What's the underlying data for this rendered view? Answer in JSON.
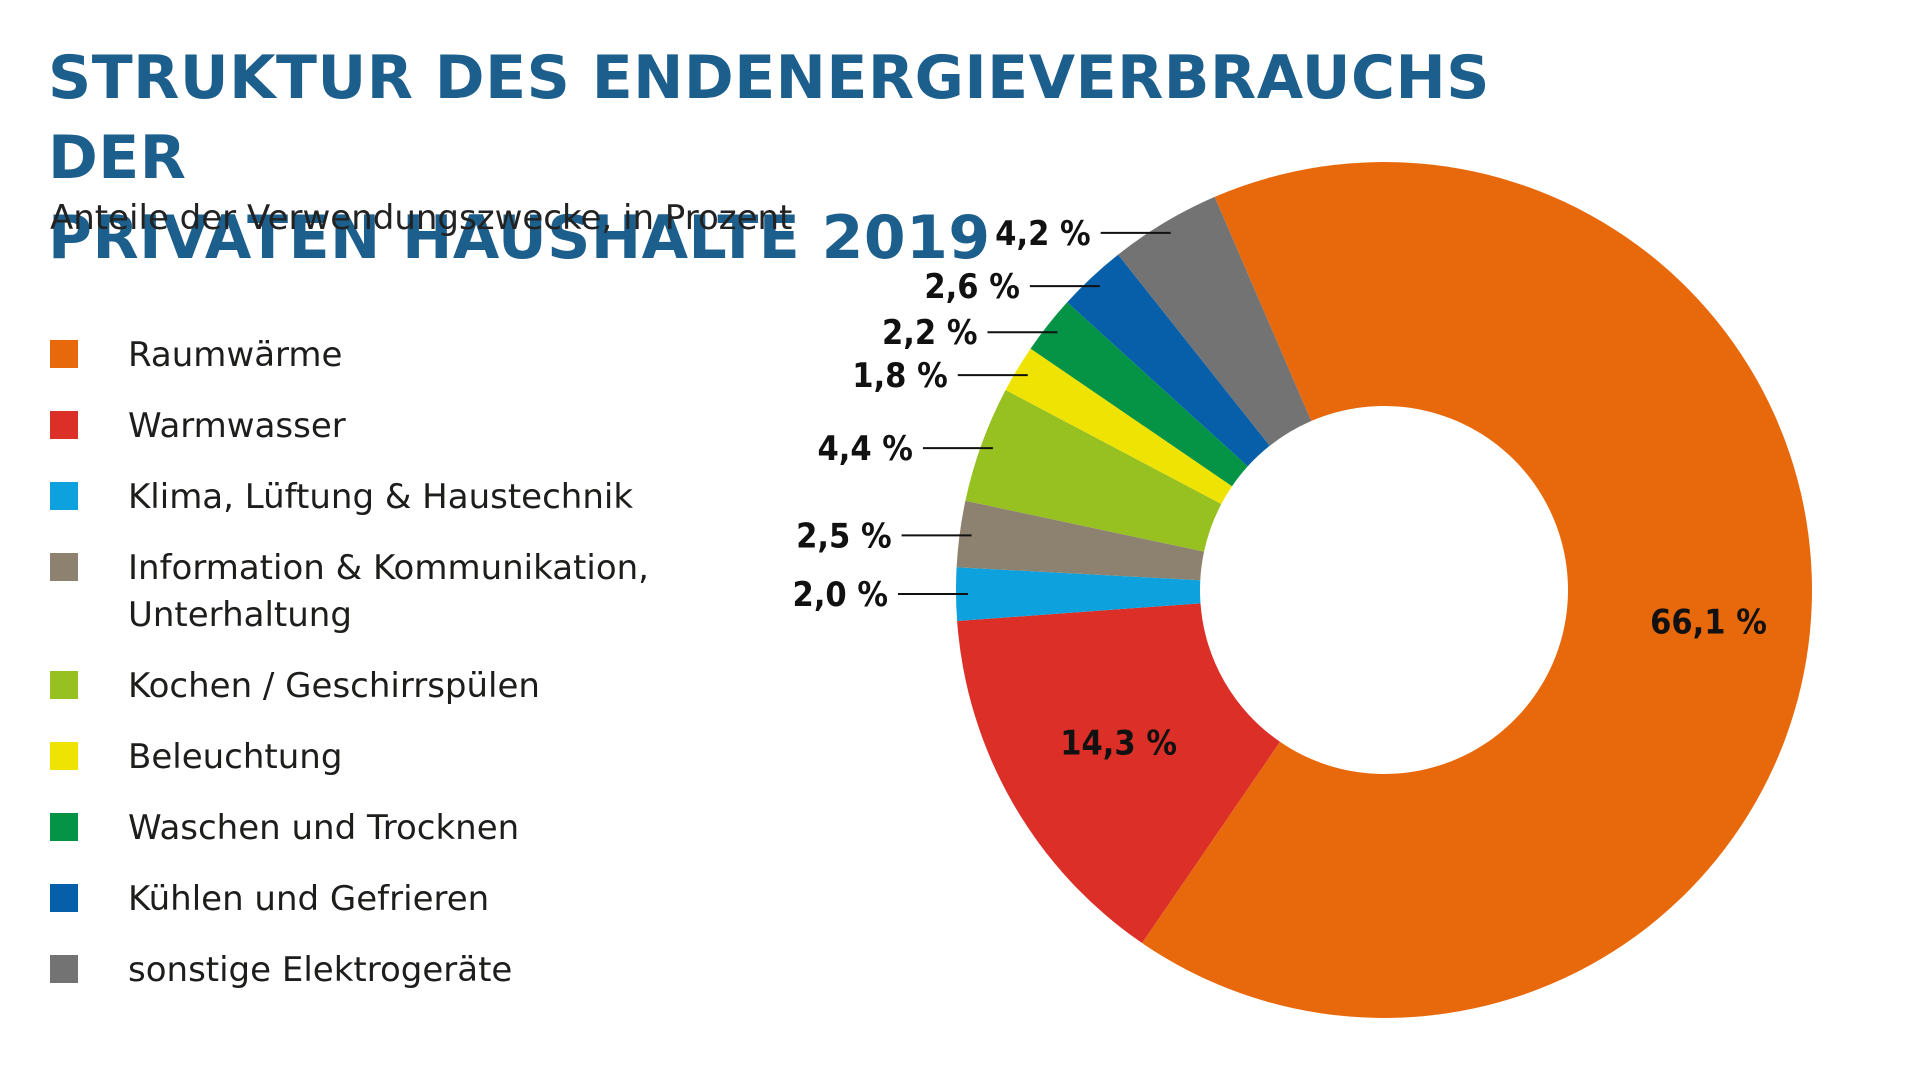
{
  "title_line1": "STRUKTUR DES ENDENERGIEVERBRAUCHS DER",
  "title_line2": "PRIVATEN HAUSHALTE 2019",
  "subtitle": "Anteile der Verwendungszwecke, in Prozent",
  "chart_data": {
    "type": "pie",
    "donut": true,
    "title": "STRUKTUR DES ENDENERGIEVERBRAUCHS DER PRIVATEN HAUSHALTE 2019",
    "subtitle": "Anteile der Verwendungszwecke, in Prozent",
    "legend_position": "left",
    "slices": [
      {
        "name": "Raumwärme",
        "value": 66.1,
        "label": "66,1 %",
        "color": "#e8690b"
      },
      {
        "name": "Warmwasser",
        "value": 14.3,
        "label": "14,3 %",
        "color": "#dc2f28"
      },
      {
        "name": "Klima, Lüftung & Haustechnik",
        "value": 2.0,
        "label": "2,0 %",
        "color": "#0da1dd"
      },
      {
        "name": "Information & Kommunikation, Unterhaltung",
        "value": 2.5,
        "label": "2,5 %",
        "color": "#8d8170"
      },
      {
        "name": "Kochen / Geschirrspülen",
        "value": 4.4,
        "label": "4,4 %",
        "color": "#97c021"
      },
      {
        "name": "Beleuchtung",
        "value": 1.8,
        "label": "1,8 %",
        "color": "#efe303"
      },
      {
        "name": "Waschen und Trocknen",
        "value": 2.2,
        "label": "2,2 %",
        "color": "#059345"
      },
      {
        "name": "Kühlen und Gefrieren",
        "value": 2.6,
        "label": "2,6 %",
        "color": "#075faa"
      },
      {
        "name": "sonstige Elektrogeräte",
        "value": 4.2,
        "label": "4,2 %",
        "color": "#737373"
      }
    ]
  },
  "legend": [
    {
      "label": "Raumwärme",
      "color": "#e8690b"
    },
    {
      "label": "Warmwasser",
      "color": "#dc2f28"
    },
    {
      "label": "Klima, Lüftung & Haustechnik",
      "color": "#0da1dd"
    },
    {
      "label": "Information & Kommunikation,",
      "label2": "Unterhaltung",
      "color": "#8d8170"
    },
    {
      "label": "Kochen / Geschirrspülen",
      "color": "#97c021"
    },
    {
      "label": "Beleuchtung",
      "color": "#efe303"
    },
    {
      "label": "Waschen und Trocknen",
      "color": "#059345"
    },
    {
      "label": "Kühlen und Gefrieren",
      "color": "#075faa"
    },
    {
      "label": "sonstige Elektrogeräte",
      "color": "#737373"
    }
  ]
}
